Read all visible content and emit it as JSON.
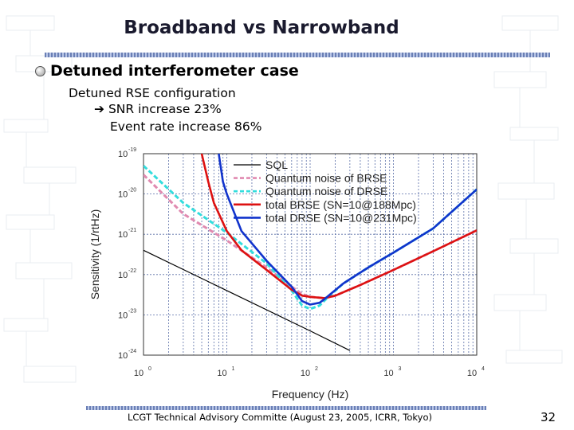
{
  "slide": {
    "title": "Broadband vs Narrowband",
    "bullet": "Detuned interferometer case",
    "line1": "Detuned RSE configuration",
    "line2": "SNR increase 23%",
    "line3": "Event rate increase 86%",
    "footer": "LCGT Technical Advisory Committe (August 23, 2005, ICRR, Tokyo)",
    "page_number": "32"
  },
  "chart_data": {
    "type": "line",
    "title": "",
    "xlabel": "Frequency (Hz)",
    "ylabel": "Sensitivity (1/rtHz)",
    "xscale": "log",
    "yscale": "log",
    "xlim": [
      1,
      10000
    ],
    "ylim": [
      1e-24,
      1e-19
    ],
    "x_ticks": [
      {
        "base": "10",
        "exp": "0"
      },
      {
        "base": "10",
        "exp": "1"
      },
      {
        "base": "10",
        "exp": "2"
      },
      {
        "base": "10",
        "exp": "3"
      },
      {
        "base": "10",
        "exp": "4"
      }
    ],
    "y_ticks": [
      {
        "base": "10",
        "exp": "-19"
      },
      {
        "base": "10",
        "exp": "-20"
      },
      {
        "base": "10",
        "exp": "-21"
      },
      {
        "base": "10",
        "exp": "-22"
      },
      {
        "base": "10",
        "exp": "-23"
      },
      {
        "base": "10",
        "exp": "-24"
      }
    ],
    "grid": true,
    "legend_position": "top-right",
    "series": [
      {
        "name": "SQL",
        "color": "#000000",
        "dash": "solid",
        "x": [
          1,
          10,
          100,
          300
        ],
        "y": [
          4e-22,
          4e-23,
          4e-24,
          1.3e-24
        ]
      },
      {
        "name": "Quantum noise of BRSE",
        "color": "#e08ab0",
        "dash": "dashed",
        "x": [
          1,
          3,
          10,
          30,
          60,
          80,
          100,
          150,
          200,
          400,
          1000,
          3000,
          10000
        ],
        "y": [
          3e-20,
          3.2e-21,
          7e-22,
          1.5e-22,
          5e-23,
          3.3e-23,
          2.8e-23,
          2.6e-23,
          3e-23,
          5.5e-23,
          1.3e-22,
          3.8e-22,
          1.25e-21
        ]
      },
      {
        "name": "Quantum noise of DRSE",
        "color": "#33dddd",
        "dash": "dashed",
        "x": [
          1,
          3,
          10,
          30,
          60,
          80,
          100,
          130,
          150,
          250,
          500,
          1000,
          3000,
          10000
        ],
        "y": [
          5e-20,
          6e-21,
          1.1e-21,
          1.9e-22,
          4e-23,
          1.7e-23,
          1.4e-23,
          1.7e-23,
          2.3e-23,
          6e-23,
          1.5e-22,
          3.5e-22,
          1.4e-21,
          1.3e-20
        ]
      },
      {
        "name": "total BRSE (SN=10@188Mpc)",
        "color": "#dd1111",
        "dash": "solid",
        "x": [
          5,
          6,
          7,
          10,
          15,
          30,
          60,
          80,
          100,
          150,
          200,
          400,
          1000,
          3000,
          10000
        ],
        "y": [
          1e-19,
          2e-20,
          6e-21,
          1.2e-21,
          4e-22,
          1.3e-22,
          4.2e-23,
          3e-23,
          2.8e-23,
          2.6e-23,
          3e-23,
          5.5e-23,
          1.3e-22,
          3.8e-22,
          1.25e-21
        ]
      },
      {
        "name": "total DRSE (SN=10@231Mpc)",
        "color": "#1133cc",
        "dash": "solid",
        "x": [
          8,
          9,
          10,
          15,
          30,
          60,
          80,
          100,
          130,
          150,
          250,
          500,
          1000,
          3000,
          10000
        ],
        "y": [
          1e-19,
          2e-20,
          1e-20,
          1.2e-21,
          2.2e-22,
          5e-23,
          2.2e-23,
          1.8e-23,
          2e-23,
          2.5e-23,
          6e-23,
          1.5e-22,
          3.5e-22,
          1.4e-21,
          1.3e-20
        ]
      }
    ]
  }
}
